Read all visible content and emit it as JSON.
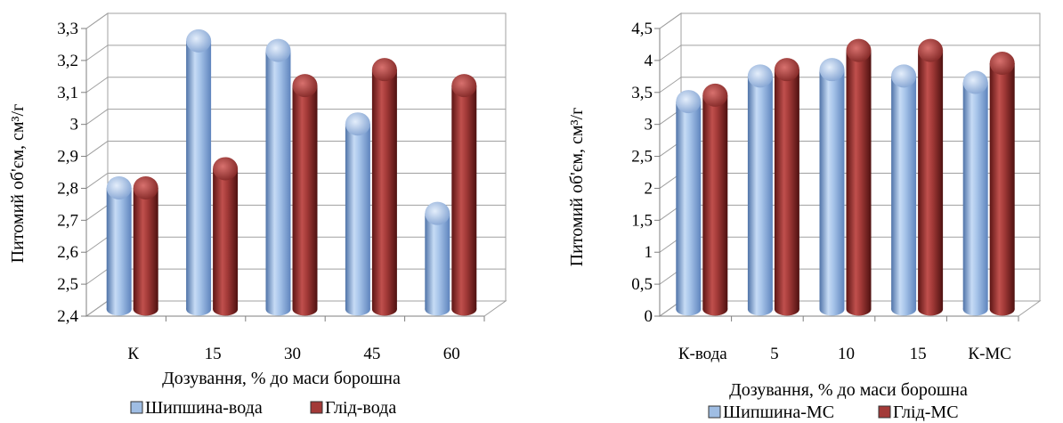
{
  "chart_data": [
    {
      "type": "bar",
      "categories": [
        "К",
        "15",
        "30",
        "45",
        "60"
      ],
      "series": [
        {
          "name": "Шипшина-вода",
          "values": [
            2.78,
            3.24,
            3.21,
            2.98,
            2.7
          ]
        },
        {
          "name": "Глід-вода",
          "values": [
            2.78,
            2.84,
            3.1,
            3.15,
            3.1
          ]
        }
      ],
      "xlabel": "Дозування, % до маси борошна",
      "ylabel": "Питомий об'єм, см³/г",
      "ylim": [
        2.4,
        3.3
      ],
      "yticks": [
        "2,4",
        "2,5",
        "2,6",
        "2,7",
        "2,8",
        "2,9",
        "3",
        "3,1",
        "3,2",
        "3,3"
      ],
      "grid": true,
      "legend": "bottom"
    },
    {
      "type": "bar",
      "categories": [
        "К-вода",
        "5",
        "10",
        "15",
        "К-МС"
      ],
      "series": [
        {
          "name": "Шипшина-МС",
          "values": [
            3.25,
            3.65,
            3.75,
            3.65,
            3.55
          ]
        },
        {
          "name": "Глід-МС",
          "values": [
            3.35,
            3.75,
            4.05,
            4.05,
            3.85
          ]
        }
      ],
      "xlabel": "Дозування, % до маси борошна",
      "ylabel": "Питомий об'єм, см³/г",
      "ylim": [
        0,
        4.5
      ],
      "yticks": [
        "0",
        "0,5",
        "1",
        "1,5",
        "2",
        "2,5",
        "3",
        "3,5",
        "4",
        "4,5"
      ],
      "grid": true,
      "legend": "bottom"
    }
  ],
  "colors": {
    "series1": "#9fbde3",
    "series2": "#a33a38",
    "grid": "#a0a0a0",
    "axis": "#7f7f7f"
  }
}
